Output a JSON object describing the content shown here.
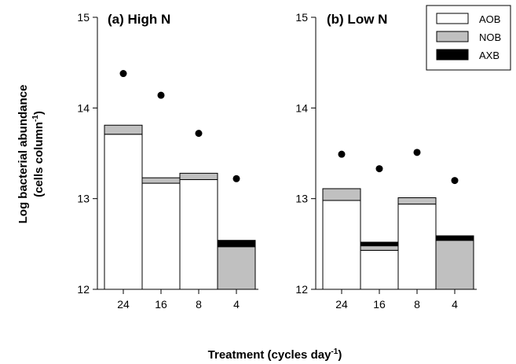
{
  "chart_data": {
    "type": "bar",
    "stacked": true,
    "ylabel_line1": "Log bacterial abundance",
    "ylabel_line2": "(cells column",
    "ylabel_sup": "-1",
    "ylabel_close": ")",
    "xlabel": "Treatment (cycles day",
    "xlabel_sup": "-1",
    "xlabel_close": ")",
    "ylim": [
      12,
      15
    ],
    "yticks": [
      "12",
      "13",
      "14",
      "15"
    ],
    "categories": [
      "24",
      "16",
      "8",
      "4"
    ],
    "colors": {
      "AOB": "#ffffff",
      "NOB": "#c0c0c0",
      "AXB": "#000000",
      "dot": "#000000"
    },
    "legend": {
      "position": "top-right",
      "items": [
        {
          "name": "AOB",
          "color": "#ffffff"
        },
        {
          "name": "NOB",
          "color": "#c0c0c0"
        },
        {
          "name": "AXB",
          "color": "#000000"
        }
      ]
    },
    "panels": [
      {
        "title": "(a) High N",
        "bars": [
          {
            "category": "24",
            "AOB": 13.71,
            "NOB": 13.81,
            "AXB": null
          },
          {
            "category": "16",
            "AOB": 13.17,
            "NOB": 13.23,
            "AXB": null
          },
          {
            "category": "8",
            "AOB": 13.21,
            "NOB": 13.28,
            "AXB": null
          },
          {
            "category": "4",
            "AOB": null,
            "NOB": 12.47,
            "AXB": 12.54
          }
        ],
        "dots": [
          14.38,
          14.14,
          13.72,
          13.22
        ]
      },
      {
        "title": "(b) Low N",
        "bars": [
          {
            "category": "24",
            "AOB": 12.98,
            "NOB": 13.11,
            "AXB": null
          },
          {
            "category": "16",
            "AOB": 12.43,
            "NOB": 12.48,
            "AXB": 12.52
          },
          {
            "category": "8",
            "AOB": 12.94,
            "NOB": 13.01,
            "AXB": null
          },
          {
            "category": "4",
            "AOB": null,
            "NOB": 12.54,
            "AXB": 12.59
          }
        ],
        "dots": [
          13.49,
          13.33,
          13.51,
          13.2
        ]
      }
    ]
  }
}
